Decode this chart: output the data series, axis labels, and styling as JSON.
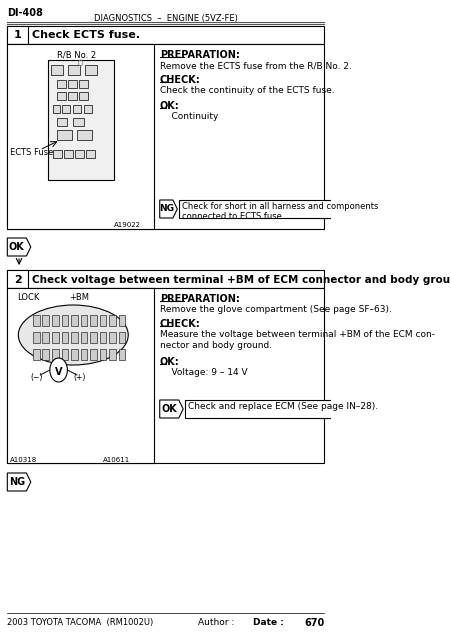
{
  "page_header_left": "DI-408",
  "page_header_center": "DIAGNOSTICS  –  ENGINE (5VZ-FE)",
  "step1_number": "1",
  "step1_title": "Check ECTS fuse.",
  "step1_img_label_top": "R/B No. 2",
  "step1_img_label_left": "ECTS Fuse",
  "step1_img_code": "A19022",
  "step1_prep_title": "PREPARATION:",
  "step1_prep_text": "Remove the ECTS fuse from the R/B No. 2.",
  "step1_check_title": "CHECK:",
  "step1_check_text": "Check the continuity of the ECTS fuse.",
  "step1_ok_title": "OK:",
  "step1_ok_text": "    Continuity",
  "step1_ng_label": "NG",
  "step1_ng_text": "Check for short in all harness and components\nconnected to ECTS fuse.",
  "ok_box1_label": "OK",
  "step2_number": "2",
  "step2_title": "Check voltage between terminal +BM of ECM connector and body ground.",
  "step2_img_label_lock": "LOCK",
  "step2_img_label_bm": "+BM",
  "step2_img_code1": "A10318",
  "step2_img_code2": "A10611",
  "step2_prep_title": "PREPARATION:",
  "step2_prep_text": "Remove the glove compartment (See page SF–63).",
  "step2_check_title": "CHECK:",
  "step2_check_text": "Measure the voltage between terminal +BM of the ECM con-\nnector and body ground.",
  "step2_ok_title": "OK:",
  "step2_ok_text": "    Voltage: 9 – 14 V",
  "step2_ok_box_label": "OK",
  "step2_ok_box_text": "Check and replace ECM (See page IN–28).",
  "ng_box2_label": "NG",
  "footer_left": "2003 TOYOTA TACOMA  (RM1002U)",
  "footer_author": "Author :",
  "footer_date": "Date :",
  "footer_page": "670",
  "bg_color": "#ffffff",
  "border_color": "#000000",
  "text_color": "#000000",
  "header_line_color": "#555555"
}
